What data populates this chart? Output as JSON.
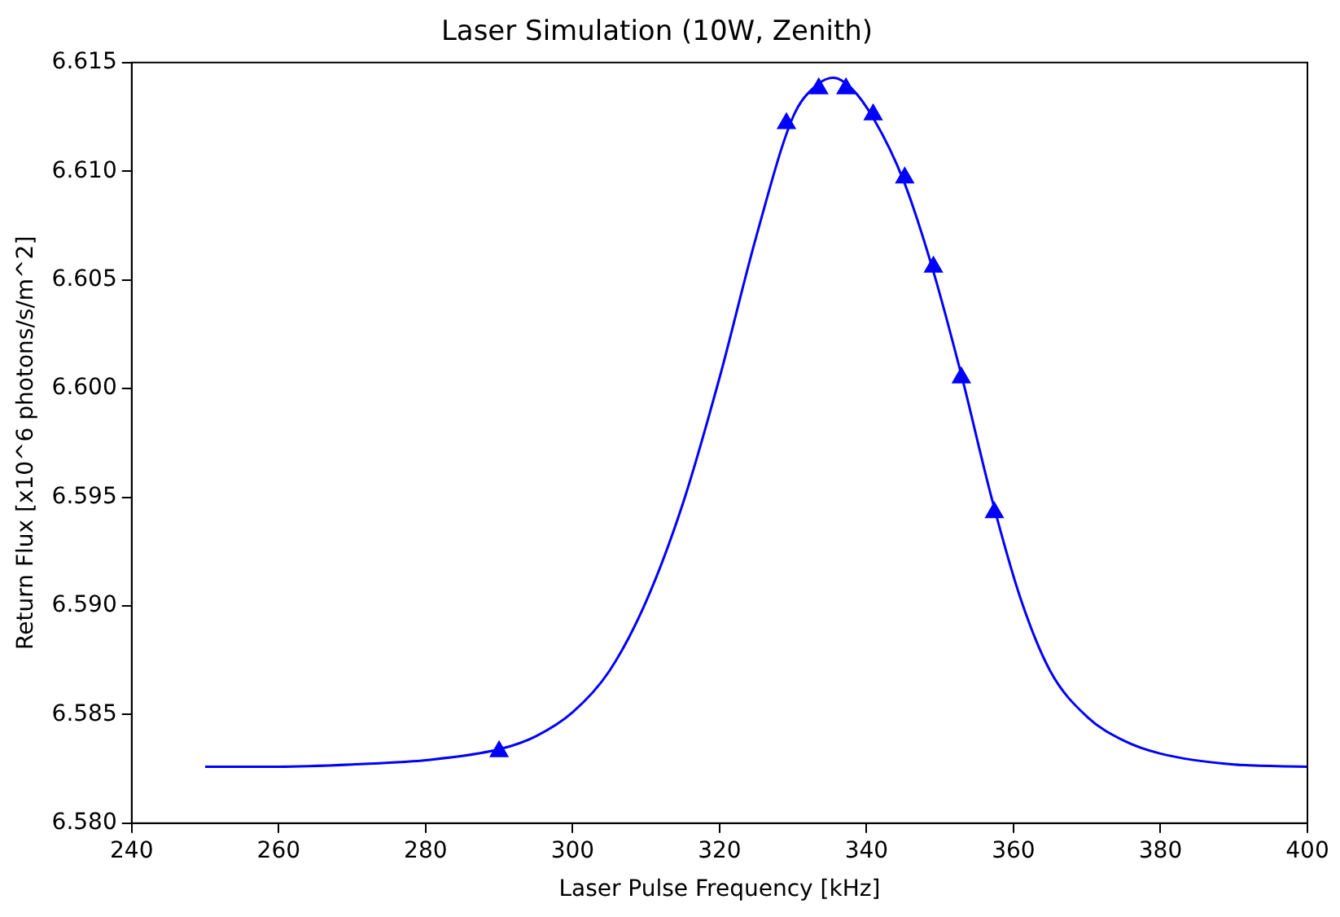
{
  "chart_data": {
    "type": "line",
    "title": "Laser Simulation (10W, Zenith)",
    "xlabel": "Laser Pulse Frequency [kHz]",
    "ylabel": "Return Flux [x10^6 photons/s/m^2]",
    "xlim": [
      240,
      400
    ],
    "xticks": [
      240,
      260,
      280,
      300,
      320,
      340,
      360,
      380,
      400
    ],
    "ylim": [
      6.58,
      6.615
    ],
    "yticks": [
      {
        "value": 6.58,
        "label": "6.580"
      },
      {
        "value": 6.585,
        "label": "6.585"
      },
      {
        "value": 6.59,
        "label": "6.590"
      },
      {
        "value": 6.595,
        "label": "6.595"
      },
      {
        "value": 6.6,
        "label": "6.600"
      },
      {
        "value": 6.605,
        "label": "6.605"
      },
      {
        "value": 6.61,
        "label": "6.610"
      },
      {
        "value": 6.615,
        "label": "6.615"
      }
    ],
    "grid": false,
    "legend": false,
    "series": [
      {
        "type": "line",
        "color": "#0000ff",
        "marker": "none",
        "line_style": "solid",
        "x": [
          250,
          260,
          270,
          280,
          290,
          295,
          300,
          305,
          310,
          315,
          320,
          325,
          330,
          333,
          335.5,
          338,
          341,
          345,
          349,
          353,
          357,
          361,
          365,
          370,
          375,
          380,
          390,
          400
        ],
        "values": [
          6.5826,
          6.5826,
          6.5827,
          6.5829,
          6.5834,
          6.584,
          6.5851,
          6.587,
          6.5902,
          6.5947,
          6.6005,
          6.607,
          6.6125,
          6.6139,
          6.6143,
          6.6138,
          6.6124,
          6.6096,
          6.6055,
          6.6005,
          6.595,
          6.5903,
          6.587,
          6.5849,
          6.5838,
          6.5832,
          6.5827,
          6.5826
        ]
      },
      {
        "type": "scatter",
        "color": "#0000ff",
        "marker": "triangle",
        "x": [
          290,
          329.1,
          333.5,
          337.2,
          340.9,
          345.2,
          349.1,
          352.9,
          357.4
        ],
        "values": [
          6.5833,
          6.6122,
          6.6138,
          6.6138,
          6.6126,
          6.6097,
          6.6056,
          6.6005,
          6.5943
        ]
      }
    ]
  }
}
